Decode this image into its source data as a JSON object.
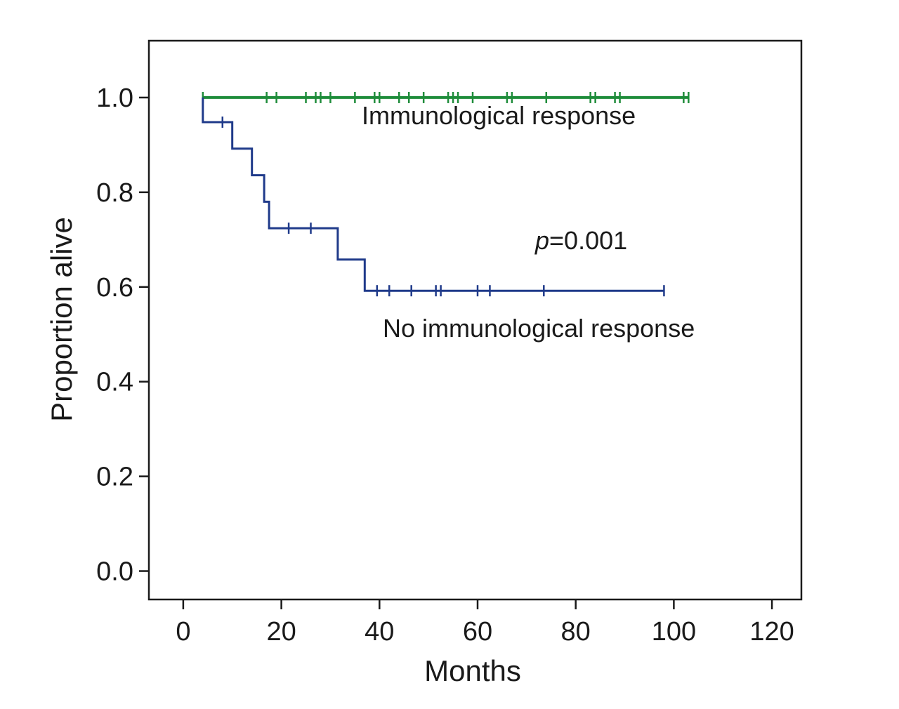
{
  "chart_data": {
    "type": "line",
    "subtype": "kaplan-meier",
    "xlabel": "Months",
    "ylabel": "Proportion alive",
    "xlim": [
      -7,
      126
    ],
    "ylim": [
      -0.06,
      1.12
    ],
    "xticks": [
      0,
      20,
      40,
      60,
      80,
      100,
      120
    ],
    "yticks": [
      0.0,
      0.2,
      0.4,
      0.6,
      0.8,
      1.0
    ],
    "x_tick_labels": [
      "0",
      "20",
      "40",
      "60",
      "80",
      "100",
      "120"
    ],
    "y_tick_labels": [
      "0.0",
      "0.2",
      "0.4",
      "0.6",
      "0.8",
      "1.0"
    ],
    "series": [
      {
        "name": "Immunological response",
        "color": "#1e8c3a",
        "steps": [
          [
            4,
            1.0
          ],
          [
            103,
            1.0
          ]
        ],
        "censored": [
          [
            4,
            1.0
          ],
          [
            17,
            1.0
          ],
          [
            19,
            1.0
          ],
          [
            25,
            1.0
          ],
          [
            27,
            1.0
          ],
          [
            28,
            1.0
          ],
          [
            30,
            1.0
          ],
          [
            35,
            1.0
          ],
          [
            39,
            1.0
          ],
          [
            40,
            1.0
          ],
          [
            44,
            1.0
          ],
          [
            46,
            1.0
          ],
          [
            49,
            1.0
          ],
          [
            54,
            1.0
          ],
          [
            55,
            1.0
          ],
          [
            56,
            1.0
          ],
          [
            59,
            1.0
          ],
          [
            66,
            1.0
          ],
          [
            67,
            1.0
          ],
          [
            74,
            1.0
          ],
          [
            83,
            1.0
          ],
          [
            84,
            1.0
          ],
          [
            88,
            1.0
          ],
          [
            89,
            1.0
          ],
          [
            102,
            1.0
          ],
          [
            103,
            1.0
          ]
        ]
      },
      {
        "name": "No immunological response",
        "color": "#1f3a8a",
        "steps": [
          [
            4,
            1.0
          ],
          [
            4,
            0.948
          ],
          [
            10,
            0.948
          ],
          [
            10,
            0.892
          ],
          [
            14,
            0.892
          ],
          [
            14,
            0.836
          ],
          [
            16.5,
            0.836
          ],
          [
            16.5,
            0.78
          ],
          [
            17.5,
            0.78
          ],
          [
            17.5,
            0.724
          ],
          [
            31.5,
            0.724
          ],
          [
            31.5,
            0.658
          ],
          [
            37,
            0.658
          ],
          [
            37,
            0.592
          ],
          [
            98,
            0.592
          ]
        ],
        "censored": [
          [
            8,
            0.948
          ],
          [
            21.5,
            0.724
          ],
          [
            26,
            0.724
          ],
          [
            39.5,
            0.592
          ],
          [
            42,
            0.592
          ],
          [
            46.5,
            0.592
          ],
          [
            51.5,
            0.592
          ],
          [
            52.5,
            0.592
          ],
          [
            60,
            0.592
          ],
          [
            62.5,
            0.592
          ],
          [
            73.5,
            0.592
          ],
          [
            98,
            0.592
          ]
        ]
      }
    ],
    "annotations": {
      "label_response": "Immunological response",
      "label_no_response": "No immunological response",
      "p_prefix": "p",
      "p_suffix": "=0.001"
    }
  }
}
